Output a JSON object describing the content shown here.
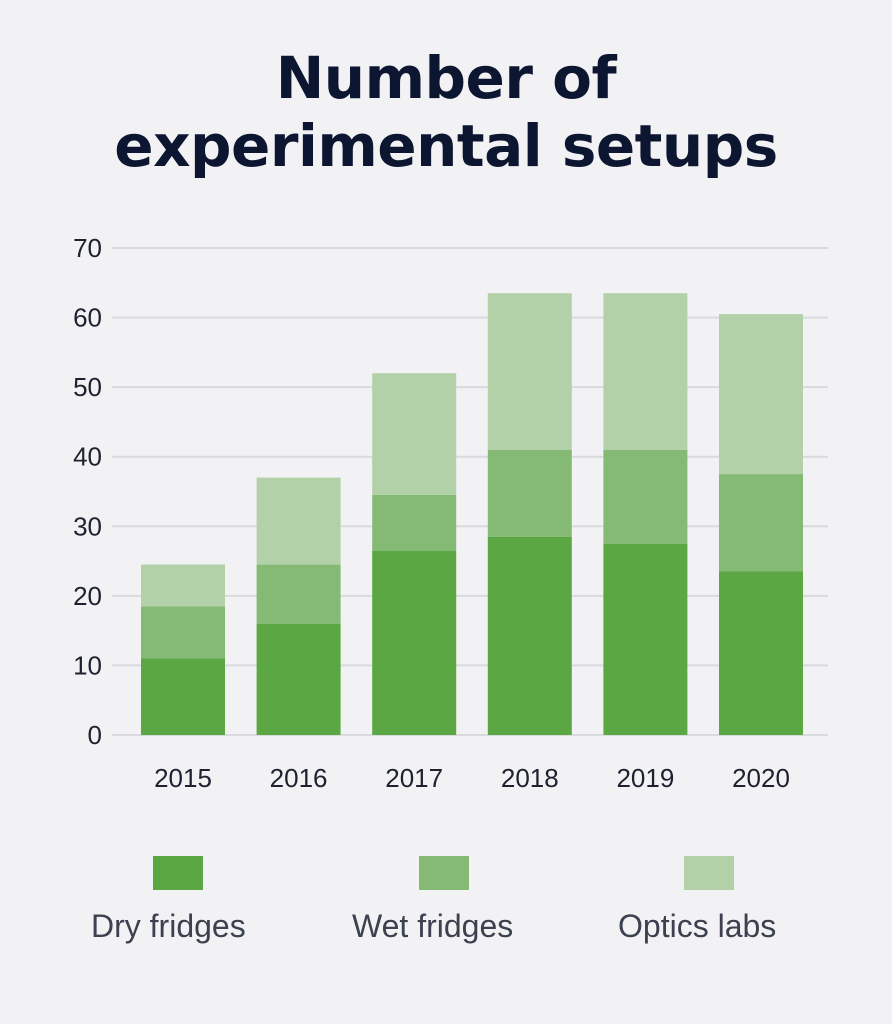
{
  "title_lines": [
    "Number of",
    "experimental setups"
  ],
  "colors": {
    "background": "#f2f2f4",
    "grid": "#d9dade",
    "axis_text": "#1e2230",
    "title": "#0c1630",
    "legend_text": "#3c4150"
  },
  "legend": [
    {
      "label": "Dry fridges",
      "color": "#5ba744"
    },
    {
      "label": "Wet fridges",
      "color": "#84ba74"
    },
    {
      "label": "Optics labs",
      "color": "#b2d1a8"
    }
  ],
  "chart_data": {
    "type": "bar",
    "stacked": true,
    "title": "Number of experimental setups",
    "categories": [
      "2015",
      "2016",
      "2017",
      "2018",
      "2019",
      "2020"
    ],
    "series": [
      {
        "name": "Dry fridges",
        "color": "#5ba744",
        "values": [
          11,
          16,
          26.5,
          28.5,
          27.5,
          23.5
        ]
      },
      {
        "name": "Wet fridges",
        "color": "#84ba74",
        "values": [
          7.5,
          8.5,
          8,
          12.5,
          13.5,
          14
        ]
      },
      {
        "name": "Optics labs",
        "color": "#b2d1a8",
        "values": [
          6,
          12.5,
          17.5,
          22.5,
          22.5,
          23
        ]
      }
    ],
    "ylim": [
      0,
      70
    ],
    "yticks": [
      0,
      10,
      20,
      30,
      40,
      50,
      60,
      70
    ],
    "grid": true,
    "legend_position": "bottom"
  }
}
